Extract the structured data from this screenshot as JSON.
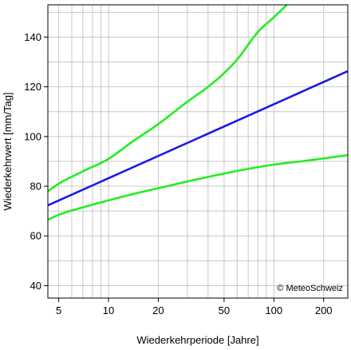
{
  "chart_data": {
    "type": "line",
    "title": "",
    "xlabel": "Wiederkehrperiode [Jahre]",
    "ylabel": "Wiederkehrwert [mm/Tag]",
    "xscale": "log",
    "xlim": [
      4.3,
      280
    ],
    "ylim": [
      35,
      153
    ],
    "grid": true,
    "x_ticks": [
      5,
      10,
      20,
      50,
      100,
      200
    ],
    "y_ticks": [
      40,
      60,
      80,
      100,
      120,
      140
    ],
    "credit": "© MeteoSchweiz",
    "series": [
      {
        "role": "estimate",
        "color": "#1a1ae6",
        "x": [
          4.3,
          280
        ],
        "y": [
          72.3,
          126.3
        ]
      },
      {
        "role": "upper-bound",
        "color": "#22ee22",
        "x": [
          4.3,
          5,
          7,
          10,
          14,
          20,
          30,
          40,
          50,
          60,
          80,
          100,
          120
        ],
        "y": [
          78,
          81,
          86,
          91,
          98,
          105,
          114,
          120,
          125.5,
          131,
          142,
          148,
          153
        ]
      },
      {
        "role": "lower-bound",
        "color": "#22ee22",
        "x": [
          4.3,
          5,
          7,
          10,
          15,
          20,
          30,
          50,
          70,
          100,
          150,
          200,
          280
        ],
        "y": [
          66.5,
          68.5,
          71.5,
          74.3,
          77.3,
          79.2,
          81.9,
          85.1,
          87,
          88.7,
          90.1,
          91.2,
          92.5
        ]
      }
    ]
  }
}
